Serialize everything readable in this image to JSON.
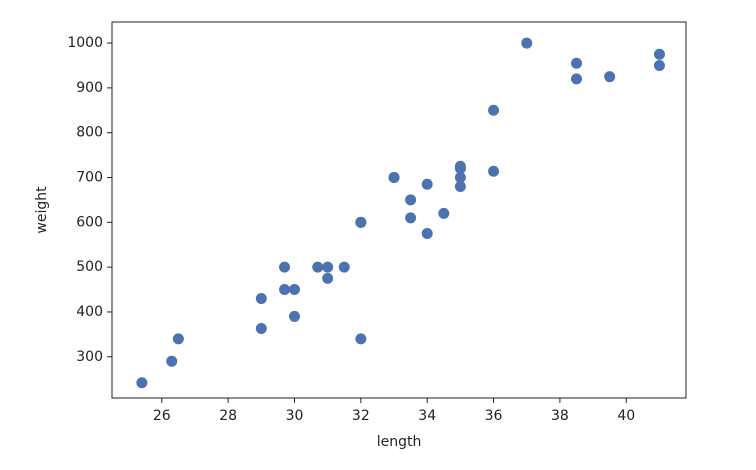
{
  "chart_data": {
    "type": "scatter",
    "xlabel": "length",
    "ylabel": "weight",
    "series": [
      {
        "color": "#4c72b0",
        "x": [
          25.4,
          26.3,
          26.5,
          29.0,
          29.0,
          29.7,
          29.7,
          30.0,
          30.0,
          30.7,
          31.0,
          31.0,
          31.5,
          32.0,
          32.0,
          32.0,
          33.0,
          33.0,
          33.5,
          33.5,
          34.0,
          34.0,
          34.5,
          35.0,
          35.0,
          35.0,
          35.0,
          36.0,
          36.0,
          37.0,
          38.5,
          38.5,
          39.5,
          41.0,
          41.0
        ],
        "values": [
          242,
          290,
          340,
          363,
          430,
          450,
          500,
          390,
          450,
          500,
          475,
          500,
          500,
          340,
          600,
          600,
          700,
          700,
          610,
          650,
          575,
          685,
          620,
          680,
          700,
          725,
          720,
          714,
          850,
          1000,
          920,
          955,
          925,
          975,
          950
        ]
      }
    ],
    "xlim": [
      24.5,
      41.8
    ],
    "ylim": [
      208,
      1047
    ],
    "xticks": [
      26,
      28,
      30,
      32,
      34,
      36,
      38,
      40
    ],
    "yticks": [
      300,
      400,
      500,
      600,
      700,
      800,
      900,
      1000
    ]
  }
}
